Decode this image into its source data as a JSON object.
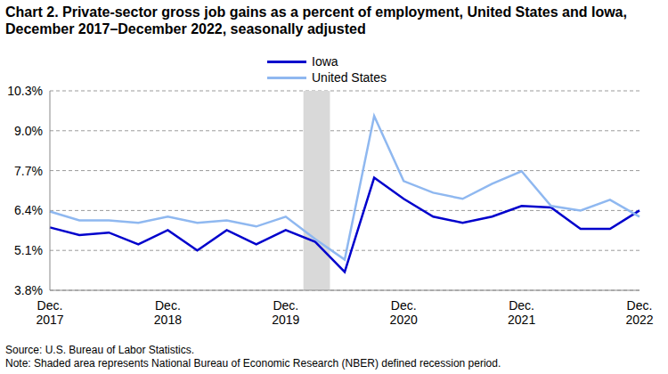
{
  "chart_data": {
    "type": "line",
    "title": "Chart 2. Private-sector gross job gains as a percent of employment, United States and Iowa, December 2017–December 2022, seasonally adjusted",
    "categories": [
      "Dec. 2017",
      null,
      null,
      null,
      "Dec. 2018",
      null,
      null,
      null,
      "Dec. 2019",
      null,
      null,
      null,
      "Dec. 2020",
      null,
      null,
      null,
      "Dec. 2021",
      null,
      null,
      null,
      "Dec. 2022"
    ],
    "series": [
      {
        "name": "Iowa",
        "color": "#0000cc",
        "values": [
          5.85,
          5.6,
          5.68,
          5.3,
          5.76,
          5.1,
          5.76,
          5.3,
          5.76,
          5.38,
          4.4,
          7.47,
          6.78,
          6.2,
          6.0,
          6.2,
          6.55,
          6.5,
          5.8,
          5.8,
          6.4
        ]
      },
      {
        "name": "United States",
        "color": "#8fb8f0",
        "values": [
          6.37,
          6.08,
          6.08,
          6.0,
          6.2,
          6.0,
          6.08,
          5.88,
          6.2,
          5.47,
          4.8,
          9.48,
          7.36,
          6.98,
          6.78,
          7.27,
          7.68,
          6.55,
          6.4,
          6.75,
          6.2
        ]
      }
    ],
    "ylim": [
      3.8,
      10.3
    ],
    "yticks": [
      {
        "value": 3.8,
        "label": "3.8%"
      },
      {
        "value": 5.1,
        "label": "5.1%"
      },
      {
        "value": 6.4,
        "label": "6.4%"
      },
      {
        "value": 7.7,
        "label": "7.7%"
      },
      {
        "value": 9.0,
        "label": "9.0%"
      },
      {
        "value": 10.3,
        "label": "10.3%"
      }
    ],
    "grid": true,
    "legend": "top",
    "recession_shading": {
      "x_start": 8.6,
      "x_end": 9.5
    },
    "source": "Source: U.S. Bureau of Labor Statistics.",
    "note": "Note: Shaded area represents National Bureau of Economic Research (NBER) defined recession period."
  }
}
